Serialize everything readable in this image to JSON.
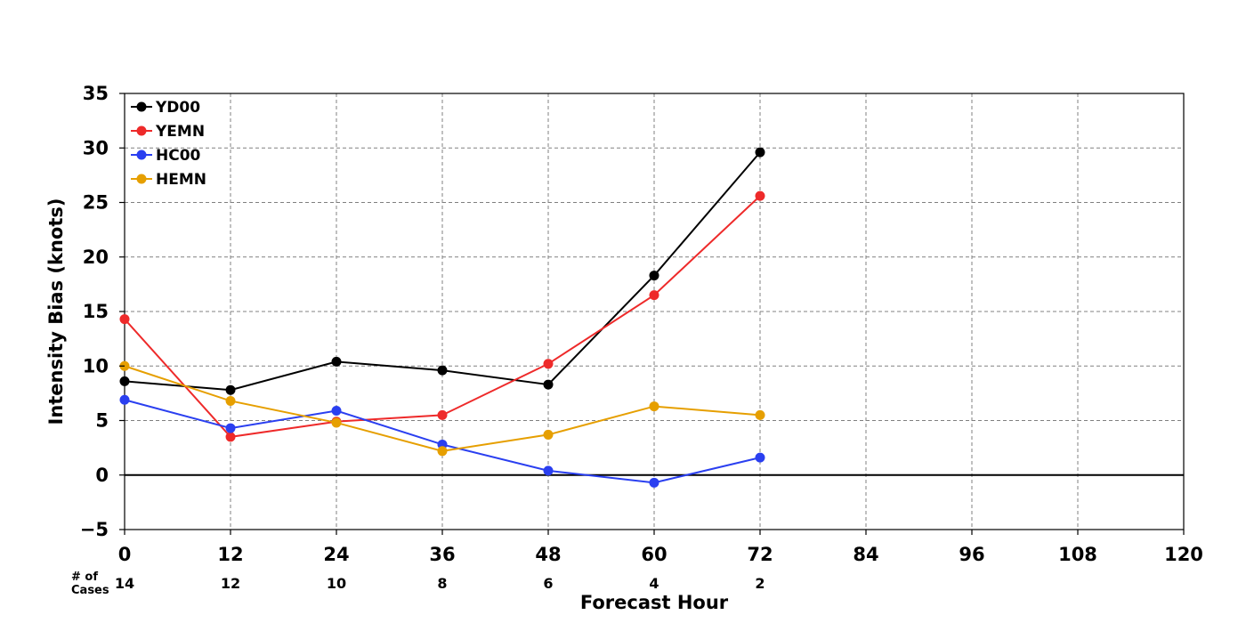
{
  "chart_data": {
    "type": "line",
    "title": "",
    "xlabel": "Forecast Hour",
    "ylabel": "Intensity Bias (knots)",
    "xlim": [
      0,
      120
    ],
    "ylim": [
      -5,
      35
    ],
    "x_ticks": [
      "0",
      "12",
      "24",
      "36",
      "48",
      "60",
      "72",
      "84",
      "96",
      "108",
      "120"
    ],
    "y_ticks": [
      "−5",
      "0",
      "5",
      "10",
      "15",
      "20",
      "25",
      "30",
      "35"
    ],
    "grid": true,
    "legend_position": "top-left",
    "x": [
      0,
      12,
      24,
      36,
      48,
      60,
      72
    ],
    "series": [
      {
        "name": "YD00",
        "color": "#000000",
        "values": [
          8.6,
          7.8,
          10.4,
          9.6,
          8.3,
          18.3,
          29.6
        ]
      },
      {
        "name": "YEMN",
        "color": "#ee2a2a",
        "values": [
          14.3,
          3.5,
          4.9,
          5.5,
          10.2,
          16.5,
          25.6
        ]
      },
      {
        "name": "HC00",
        "color": "#2a3ff0",
        "values": [
          6.9,
          4.3,
          5.9,
          2.8,
          0.4,
          -0.7,
          1.6
        ]
      },
      {
        "name": "HEMN",
        "color": "#e69f00",
        "values": [
          10.0,
          6.8,
          4.8,
          2.2,
          3.7,
          6.3,
          5.5
        ]
      }
    ],
    "cases_label": [
      "# of",
      "Cases"
    ],
    "cases": [
      {
        "x": 0,
        "label": "14"
      },
      {
        "x": 12,
        "label": "12"
      },
      {
        "x": 24,
        "label": "10"
      },
      {
        "x": 36,
        "label": "8"
      },
      {
        "x": 48,
        "label": "6"
      },
      {
        "x": 60,
        "label": "4"
      },
      {
        "x": 72,
        "label": "2"
      }
    ]
  }
}
